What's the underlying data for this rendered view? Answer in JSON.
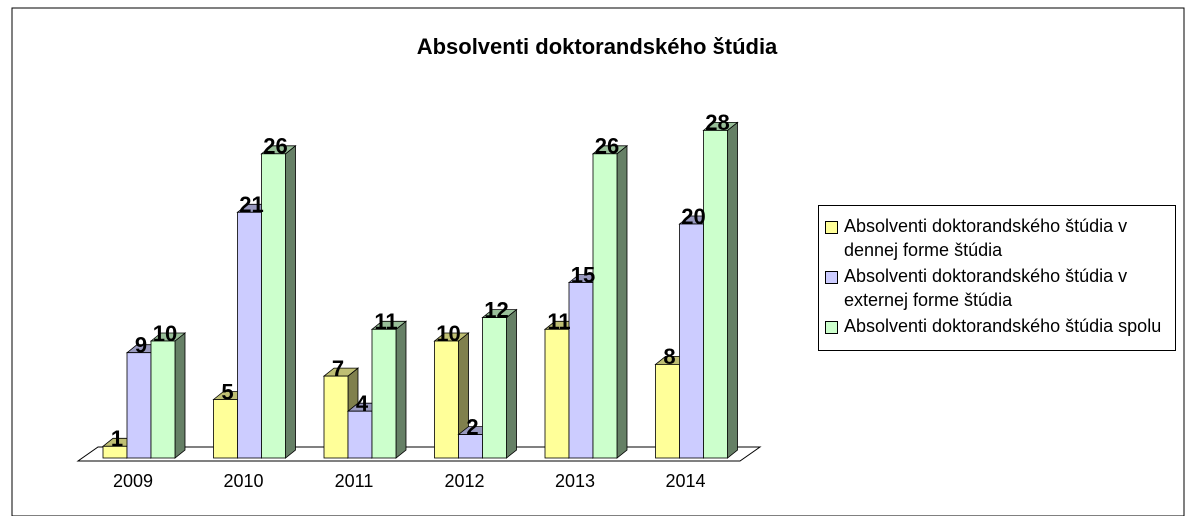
{
  "chart_data": {
    "type": "bar3d",
    "title": "Absolventi doktorandského štúdia",
    "categories": [
      "2009",
      "2010",
      "2011",
      "2012",
      "2013",
      "2014"
    ],
    "series": [
      {
        "name": "Absolventi doktorandského štúdia v dennej forme štúdia",
        "color": "#ffff99",
        "values": [
          1,
          5,
          7,
          10,
          11,
          8
        ]
      },
      {
        "name": "Absolventi doktorandského štúdia v externej forme štúdia",
        "color": "#ccccff",
        "values": [
          9,
          21,
          4,
          2,
          15,
          20
        ]
      },
      {
        "name": "Absolventi doktorandského štúdia spolu",
        "color": "#ccffcc",
        "values": [
          10,
          26,
          11,
          12,
          26,
          28
        ]
      }
    ],
    "legend": "right"
  }
}
